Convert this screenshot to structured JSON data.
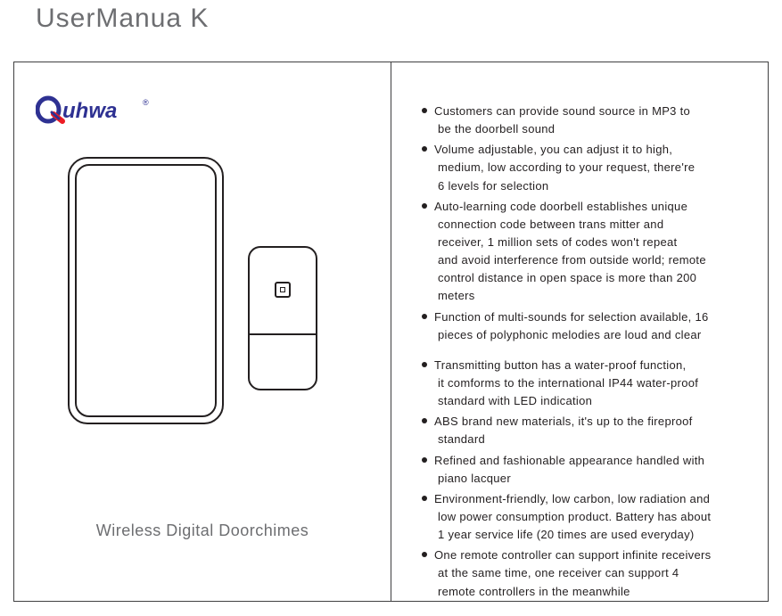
{
  "title": "UserManua K",
  "brand": {
    "text": "uhwa",
    "color": "#2e3192",
    "q_color": "#ed1c24",
    "q_inner": "#2e3192",
    "reg": "®"
  },
  "caption": "Wireless Digital Doorchimes",
  "colors": {
    "title_color": "#6d6e71",
    "line_color": "#231f20",
    "text_color": "#231f20"
  },
  "features": [
    {
      "lines": [
        "Customers can provide sound source in MP3 to",
        "be the doorbell sound"
      ]
    },
    {
      "lines": [
        "Volume adjustable, you can adjust it to high,",
        "medium, low according to your request, there're",
        "6 levels for selection"
      ]
    },
    {
      "lines": [
        "Auto-learning code doorbell establishes unique",
        "connection code between trans  mitter and",
        "receiver, 1 million sets of codes  won't repeat",
        "and avoid interference  from outside world; remote",
        "control  distance in open space is more than 200",
        "meters"
      ]
    },
    {
      "lines": [
        "Function of multi-sounds for selection available,  16",
        "pieces of polyphonic melodies  are loud and clear"
      ]
    },
    {
      "gap": true,
      "lines": [
        "Transmitting button has a water-proof function,",
        "it comforms to the international IP44 water-proof",
        "standard with LED indication"
      ]
    },
    {
      "lines": [
        "ABS brand new materials, it's up to the fireproof",
        "standard"
      ]
    },
    {
      "lines": [
        "Refined and fashionable appearance handled  with",
        "piano lacquer"
      ]
    },
    {
      "lines": [
        "Environment-friendly, low carbon, low radiation and",
        "low power consumption  product. Battery has about",
        "1 year service life (20 times are used everyday)"
      ]
    },
    {
      "lines": [
        "One remote controller can support infinite receivers",
        "at the same time, one  receiver can support 4",
        "remote controllers in the meanwhile"
      ]
    }
  ]
}
